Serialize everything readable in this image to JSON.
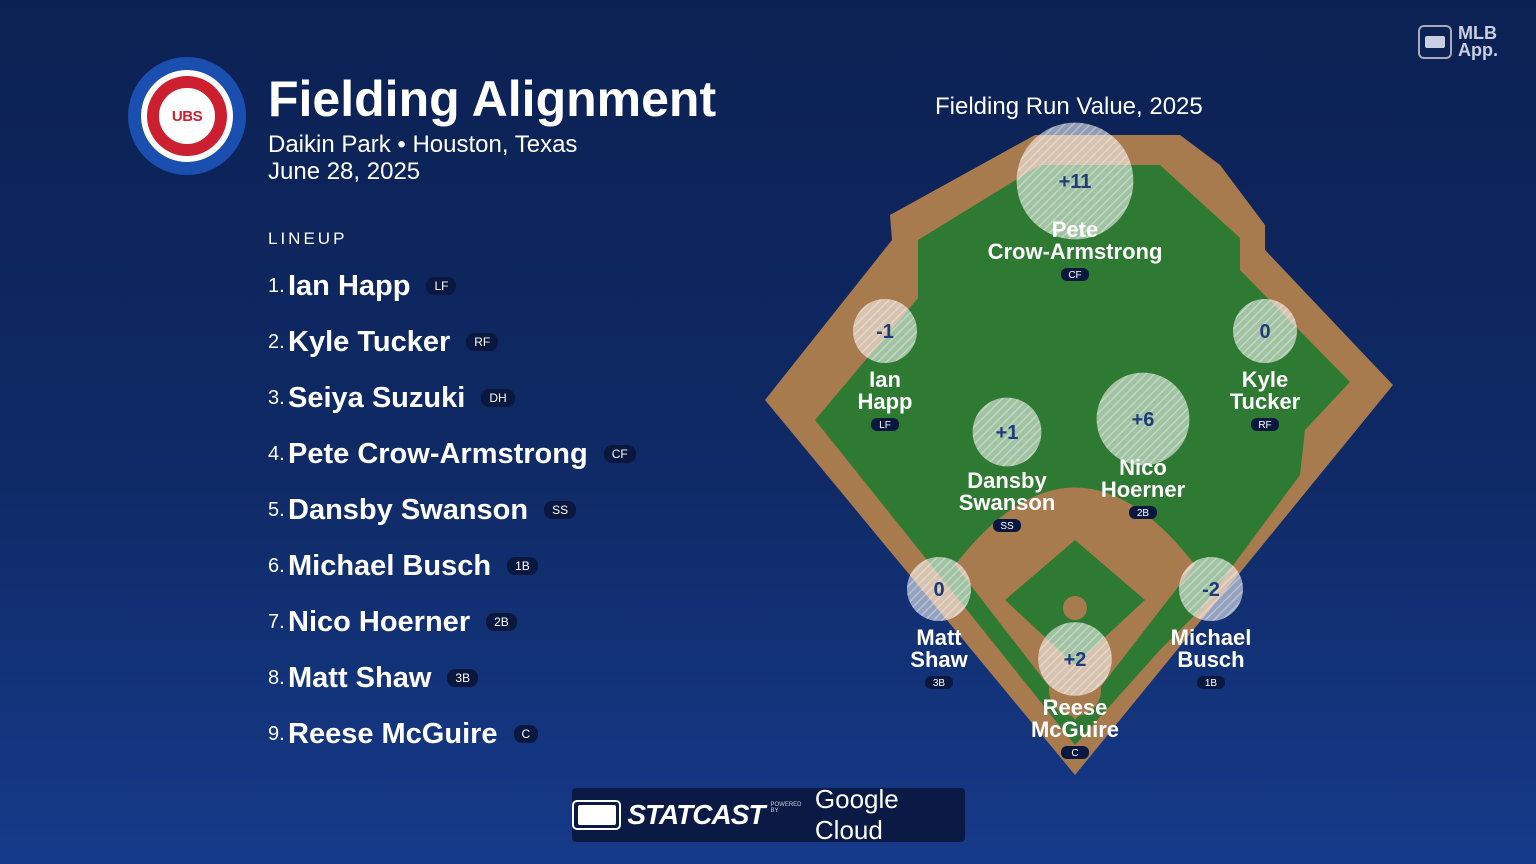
{
  "header": {
    "title": "Fielding Alignment",
    "venue": "Daikin Park • Houston, Texas",
    "date": "June 28, 2025",
    "logo_text": "UBS"
  },
  "brand": {
    "mlb_app_line1": "MLB",
    "mlb_app_line2": "App."
  },
  "lineup": {
    "label": "LINEUP",
    "players": [
      {
        "num": "1.",
        "name": "Ian Happ",
        "pos": "LF"
      },
      {
        "num": "2.",
        "name": "Kyle Tucker",
        "pos": "RF"
      },
      {
        "num": "3.",
        "name": "Seiya Suzuki",
        "pos": "DH"
      },
      {
        "num": "4.",
        "name": "Pete Crow-Armstrong",
        "pos": "CF"
      },
      {
        "num": "5.",
        "name": "Dansby Swanson",
        "pos": "SS"
      },
      {
        "num": "6.",
        "name": "Michael Busch",
        "pos": "1B"
      },
      {
        "num": "7.",
        "name": "Nico Hoerner",
        "pos": "2B"
      },
      {
        "num": "8.",
        "name": "Matt Shaw",
        "pos": "3B"
      },
      {
        "num": "9.",
        "name": "Reese McGuire",
        "pos": "C"
      }
    ]
  },
  "field": {
    "heading": "Fielding Run Value, 2025",
    "positions": [
      {
        "id": "cf",
        "line1": "Pete",
        "line2": "Crow-Armstrong",
        "pos": "CF",
        "value": "+11",
        "frv": 11
      },
      {
        "id": "lf",
        "line1": "Ian",
        "line2": "Happ",
        "pos": "LF",
        "value": "-1",
        "frv": -1
      },
      {
        "id": "rf",
        "line1": "Kyle",
        "line2": "Tucker",
        "pos": "RF",
        "value": "0",
        "frv": 0
      },
      {
        "id": "ss",
        "line1": "Dansby",
        "line2": "Swanson",
        "pos": "SS",
        "value": "+1",
        "frv": 1
      },
      {
        "id": "2b",
        "line1": "Nico",
        "line2": "Hoerner",
        "pos": "2B",
        "value": "+6",
        "frv": 6
      },
      {
        "id": "3b",
        "line1": "Matt",
        "line2": "Shaw",
        "pos": "3B",
        "value": "0",
        "frv": 0
      },
      {
        "id": "1b",
        "line1": "Michael",
        "line2": "Busch",
        "pos": "1B",
        "value": "-2",
        "frv": -2
      },
      {
        "id": "c",
        "line1": "Reese",
        "line2": "McGuire",
        "pos": "C",
        "value": "+2",
        "frv": 2
      }
    ]
  },
  "footer": {
    "statcast": "STATCAST",
    "powered": "POWERED BY",
    "cloud": "Google Cloud"
  },
  "colors": {
    "grass": "#2f7a32",
    "dirt": "#a87b4f",
    "cubs_red": "#cc1f2f",
    "cubs_blue": "#1a4fb0"
  }
}
